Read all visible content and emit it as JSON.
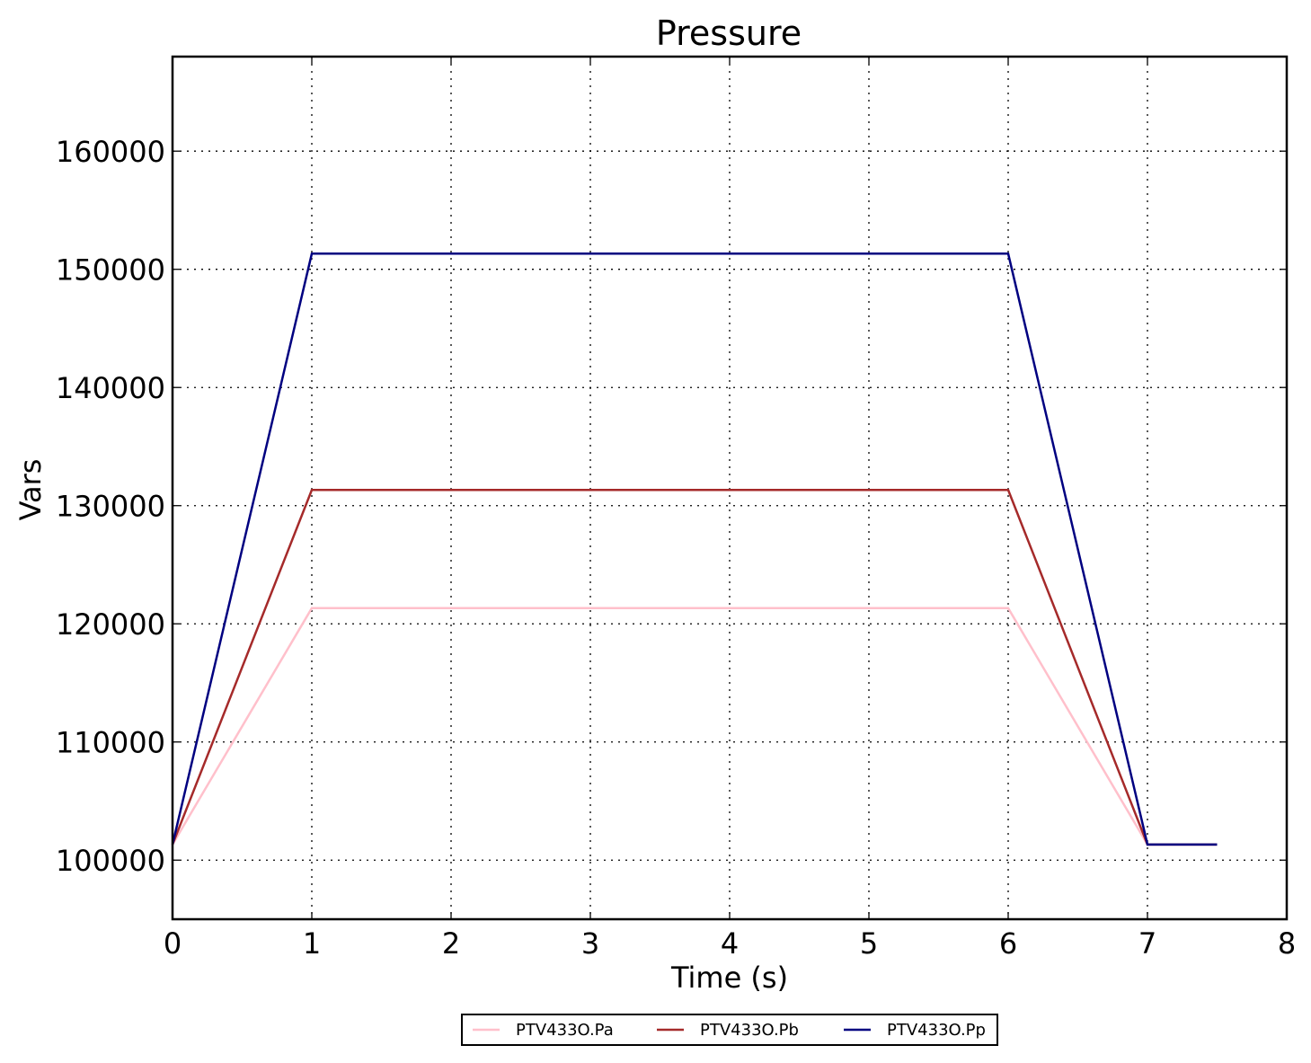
{
  "chart_data": {
    "type": "line",
    "title": "Pressure",
    "xlabel": "Time (s)",
    "ylabel": "Vars",
    "xlim": [
      0,
      8
    ],
    "ylim": [
      95000,
      168000
    ],
    "xticks": [
      0,
      1,
      2,
      3,
      4,
      5,
      6,
      7,
      8
    ],
    "yticks": [
      100000,
      110000,
      120000,
      130000,
      140000,
      150000,
      160000
    ],
    "xtick_labels": [
      "0",
      "1",
      "2",
      "3",
      "4",
      "5",
      "6",
      "7",
      "8"
    ],
    "ytick_labels": [
      "100000",
      "110000",
      "120000",
      "130000",
      "140000",
      "150000",
      "160000"
    ],
    "grid": true,
    "legend_position": "bottom-center",
    "series": [
      {
        "name": "PTV433O.Pa",
        "color": "#ffc0cb",
        "x": [
          0,
          1,
          6,
          7,
          7.5
        ],
        "y": [
          101325,
          121325,
          121325,
          101325,
          101325
        ]
      },
      {
        "name": "PTV433O.Pb",
        "color": "#a52a2a",
        "x": [
          0,
          1,
          6,
          7,
          7.5
        ],
        "y": [
          101325,
          131325,
          131325,
          101325,
          101325
        ]
      },
      {
        "name": "PTV433O.Pp",
        "color": "#000080",
        "x": [
          0,
          1,
          6,
          7,
          7.5
        ],
        "y": [
          101325,
          151325,
          151325,
          101325,
          101325
        ]
      }
    ]
  }
}
